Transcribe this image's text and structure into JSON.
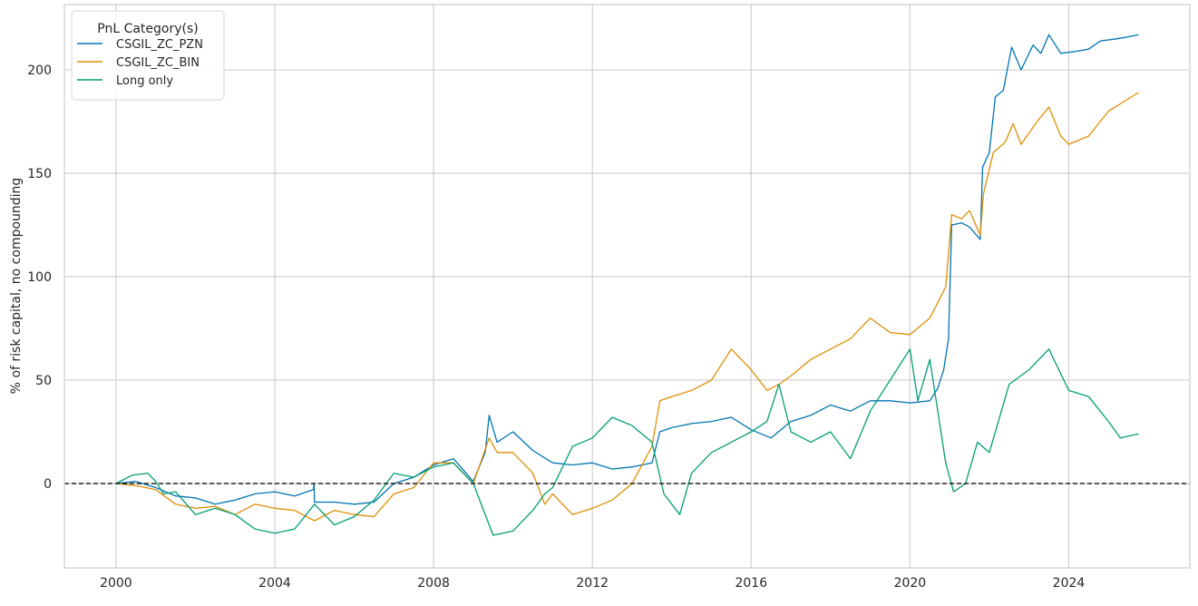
{
  "chart_data": {
    "type": "line",
    "title": "",
    "xlabel": "",
    "ylabel": "% of risk capital, no compounding",
    "xlim": [
      1998.7,
      2027.05
    ],
    "ylim": [
      -40.8,
      231.6
    ],
    "xticks": [
      2000,
      2004,
      2008,
      2012,
      2016,
      2020,
      2024
    ],
    "yticks": [
      0,
      50,
      100,
      150,
      200
    ],
    "grid": true,
    "hline": {
      "y": 0,
      "style": "dashed",
      "color": "#000000"
    },
    "legend": {
      "title": "PnL Category(s)",
      "placement": "top-left"
    },
    "series": [
      {
        "name": "CSGIL_ZC_PZN",
        "color": "#0173b2",
        "points": [
          [
            2000,
            0
          ],
          [
            2000.5,
            1
          ],
          [
            2001,
            -2
          ],
          [
            2001.5,
            -6
          ],
          [
            2002,
            -7
          ],
          [
            2002.5,
            -10
          ],
          [
            2003,
            -8
          ],
          [
            2003.5,
            -5
          ],
          [
            2004,
            -4
          ],
          [
            2004.5,
            -6
          ],
          [
            2004.97,
            -3
          ],
          [
            2004.99,
            0
          ],
          [
            2005.0,
            -9
          ],
          [
            2005.5,
            -9
          ],
          [
            2006,
            -10
          ],
          [
            2006.5,
            -9
          ],
          [
            2007,
            0
          ],
          [
            2007.5,
            3
          ],
          [
            2008,
            9
          ],
          [
            2008.5,
            12
          ],
          [
            2009,
            1
          ],
          [
            2009.3,
            15
          ],
          [
            2009.4,
            33
          ],
          [
            2009.6,
            20
          ],
          [
            2010,
            25
          ],
          [
            2010.5,
            16
          ],
          [
            2011,
            10
          ],
          [
            2011.5,
            9
          ],
          [
            2012,
            10
          ],
          [
            2012.5,
            7
          ],
          [
            2013,
            8
          ],
          [
            2013.5,
            10
          ],
          [
            2013.7,
            25
          ],
          [
            2014,
            27
          ],
          [
            2014.5,
            29
          ],
          [
            2015,
            30
          ],
          [
            2015.5,
            32
          ],
          [
            2016,
            26
          ],
          [
            2016.5,
            22
          ],
          [
            2017,
            30
          ],
          [
            2017.5,
            33
          ],
          [
            2018,
            38
          ],
          [
            2018.5,
            35
          ],
          [
            2019,
            40
          ],
          [
            2019.5,
            40
          ],
          [
            2020,
            39
          ],
          [
            2020.5,
            40
          ],
          [
            2020.7,
            46
          ],
          [
            2020.85,
            55
          ],
          [
            2020.97,
            70
          ],
          [
            2021.05,
            125
          ],
          [
            2021.3,
            126
          ],
          [
            2021.5,
            124
          ],
          [
            2021.77,
            118
          ],
          [
            2021.83,
            153
          ],
          [
            2022.0,
            160
          ],
          [
            2022.15,
            187
          ],
          [
            2022.35,
            190
          ],
          [
            2022.56,
            211
          ],
          [
            2022.8,
            200
          ],
          [
            2023.1,
            212
          ],
          [
            2023.3,
            208
          ],
          [
            2023.5,
            217
          ],
          [
            2023.8,
            208
          ],
          [
            2024.2,
            209
          ],
          [
            2024.5,
            210
          ],
          [
            2024.8,
            214
          ],
          [
            2025.2,
            215
          ],
          [
            2025.5,
            216
          ],
          [
            2025.76,
            217
          ]
        ]
      },
      {
        "name": "CSGIL_ZC_BIN",
        "color": "#de8f05",
        "points": [
          [
            2000,
            0
          ],
          [
            2000.5,
            -1
          ],
          [
            2001,
            -3
          ],
          [
            2001.5,
            -10
          ],
          [
            2002,
            -12
          ],
          [
            2002.5,
            -11
          ],
          [
            2003,
            -15
          ],
          [
            2003.5,
            -10
          ],
          [
            2004,
            -12
          ],
          [
            2004.5,
            -13
          ],
          [
            2005,
            -18
          ],
          [
            2005.5,
            -13
          ],
          [
            2006,
            -15
          ],
          [
            2006.5,
            -16
          ],
          [
            2007,
            -5
          ],
          [
            2007.5,
            -2
          ],
          [
            2008,
            10
          ],
          [
            2008.5,
            10
          ],
          [
            2009,
            0
          ],
          [
            2009.4,
            22
          ],
          [
            2009.6,
            15
          ],
          [
            2010,
            15
          ],
          [
            2010.5,
            5
          ],
          [
            2010.8,
            -10
          ],
          [
            2011,
            -5
          ],
          [
            2011.5,
            -15
          ],
          [
            2012,
            -12
          ],
          [
            2012.5,
            -8
          ],
          [
            2013,
            0
          ],
          [
            2013.5,
            18
          ],
          [
            2013.7,
            40
          ],
          [
            2014,
            42
          ],
          [
            2014.5,
            45
          ],
          [
            2015,
            50
          ],
          [
            2015.5,
            65
          ],
          [
            2016,
            55
          ],
          [
            2016.4,
            45
          ],
          [
            2016.7,
            48
          ],
          [
            2017,
            52
          ],
          [
            2017.5,
            60
          ],
          [
            2018,
            65
          ],
          [
            2018.5,
            70
          ],
          [
            2019,
            80
          ],
          [
            2019.5,
            73
          ],
          [
            2020,
            72
          ],
          [
            2020.5,
            80
          ],
          [
            2020.9,
            95
          ],
          [
            2021.05,
            130
          ],
          [
            2021.3,
            128
          ],
          [
            2021.5,
            132
          ],
          [
            2021.77,
            120
          ],
          [
            2021.85,
            140
          ],
          [
            2022.1,
            160
          ],
          [
            2022.4,
            165
          ],
          [
            2022.6,
            174
          ],
          [
            2022.8,
            164
          ],
          [
            2023.2,
            175
          ],
          [
            2023.5,
            182
          ],
          [
            2023.8,
            168
          ],
          [
            2024.0,
            164
          ],
          [
            2024.5,
            168
          ],
          [
            2025.0,
            180
          ],
          [
            2025.5,
            186
          ],
          [
            2025.76,
            189
          ]
        ]
      },
      {
        "name": "Long only",
        "color": "#029e73",
        "points": [
          [
            2000,
            0
          ],
          [
            2000.4,
            4
          ],
          [
            2000.8,
            5
          ],
          [
            2001,
            1
          ],
          [
            2001.2,
            -5
          ],
          [
            2001.5,
            -4
          ],
          [
            2002,
            -15
          ],
          [
            2002.5,
            -12
          ],
          [
            2003,
            -15
          ],
          [
            2003.5,
            -22
          ],
          [
            2004,
            -24
          ],
          [
            2004.5,
            -22
          ],
          [
            2005,
            -10
          ],
          [
            2005.5,
            -20
          ],
          [
            2006,
            -16
          ],
          [
            2006.5,
            -8
          ],
          [
            2007,
            5
          ],
          [
            2007.5,
            3
          ],
          [
            2008,
            8
          ],
          [
            2008.5,
            10
          ],
          [
            2009,
            0
          ],
          [
            2009.5,
            -25
          ],
          [
            2010,
            -23
          ],
          [
            2010.5,
            -13
          ],
          [
            2010.8,
            -5
          ],
          [
            2011,
            -2
          ],
          [
            2011.5,
            18
          ],
          [
            2012,
            22
          ],
          [
            2012.5,
            32
          ],
          [
            2013,
            28
          ],
          [
            2013.5,
            20
          ],
          [
            2013.8,
            -5
          ],
          [
            2014.2,
            -15
          ],
          [
            2014.5,
            5
          ],
          [
            2015,
            15
          ],
          [
            2015.5,
            20
          ],
          [
            2016,
            25
          ],
          [
            2016.4,
            30
          ],
          [
            2016.7,
            48
          ],
          [
            2017,
            25
          ],
          [
            2017.5,
            20
          ],
          [
            2018,
            25
          ],
          [
            2018.5,
            12
          ],
          [
            2019,
            35
          ],
          [
            2019.5,
            50
          ],
          [
            2020,
            65
          ],
          [
            2020.2,
            40
          ],
          [
            2020.5,
            60
          ],
          [
            2020.9,
            10
          ],
          [
            2021.1,
            -4
          ],
          [
            2021.4,
            0
          ],
          [
            2021.7,
            20
          ],
          [
            2022,
            15
          ],
          [
            2022.5,
            48
          ],
          [
            2023,
            55
          ],
          [
            2023.5,
            65
          ],
          [
            2024,
            45
          ],
          [
            2024.5,
            42
          ],
          [
            2025,
            30
          ],
          [
            2025.3,
            22
          ],
          [
            2025.76,
            24
          ]
        ]
      }
    ]
  }
}
